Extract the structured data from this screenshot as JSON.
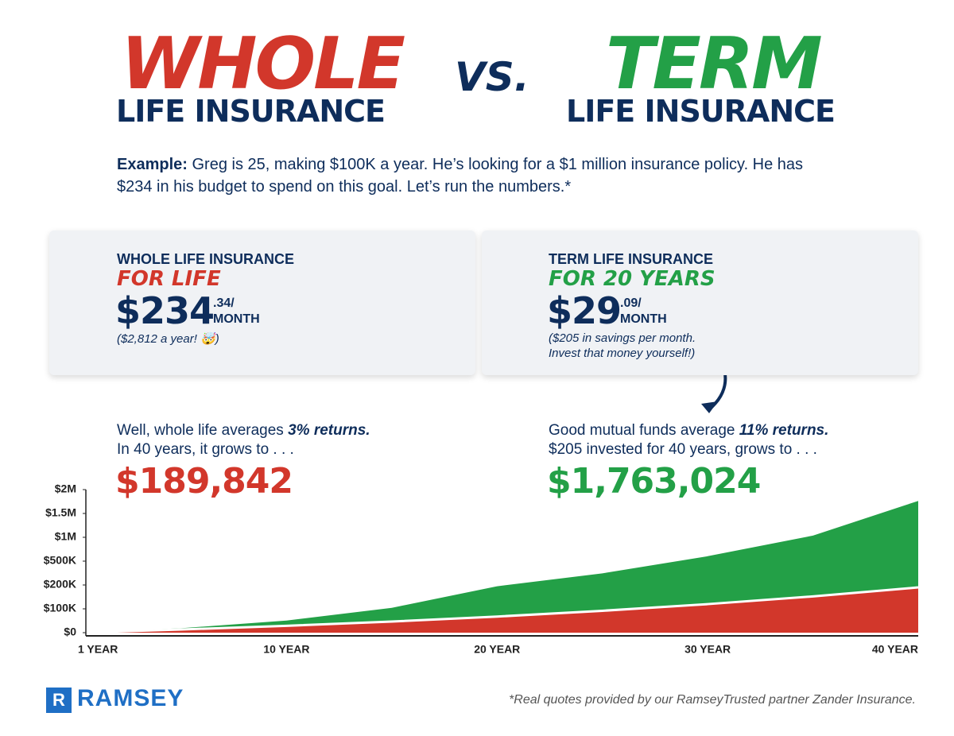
{
  "header": {
    "left_big": "WHOLE",
    "left_sub": "LIFE INSURANCE",
    "vs": "VS.",
    "right_big": "TERM",
    "right_sub": "LIFE INSURANCE"
  },
  "example": {
    "lead": "Example:",
    "line1": "Greg is 25, making $100K a year. He’s looking for a $1 million insurance policy. He has",
    "line2": "$234 in his budget to spend on this goal. Let’s run the numbers.*"
  },
  "cards": [
    {
      "title": "WHOLE LIFE INSURANCE",
      "term": "FOR LIFE",
      "price": "$234",
      "cents": ".34/",
      "per": "MONTH",
      "note": [
        "($2,812 a year! 🤯)"
      ]
    },
    {
      "title": "TERM LIFE INSURANCE",
      "term": "FOR 20 YEARS",
      "price": "$29",
      "cents": ".09/",
      "per": "MONTH",
      "note": [
        "($205 in savings per month.",
        "Invest that money yourself!)"
      ]
    }
  ],
  "results": [
    {
      "line1_a": "Well, whole life averages ",
      "line1_b": "3% returns.",
      "line2": "In 40 years, it grows to . . .",
      "amount": "$189,842"
    },
    {
      "line1_a": "Good mutual funds average ",
      "line1_b": "11% returns.",
      "line2": "$205 invested for 40 years, grows to . . .",
      "amount": "$1,763,024"
    }
  ],
  "chart_data": {
    "type": "area",
    "x": [
      1,
      5,
      10,
      15,
      20,
      25,
      30,
      35,
      40
    ],
    "series": [
      {
        "color": "#23a047",
        "values": [
          2600,
          18900,
          50700,
          104300,
          194600,
          346700,
          603200,
          1035300,
          1763024
        ]
      },
      {
        "color": "#d2372b",
        "values": [
          2520,
          13360,
          28850,
          46800,
          67600,
          91800,
          119800,
          152200,
          189842
        ]
      }
    ],
    "xlim": [
      1,
      40
    ],
    "xticks": [
      {
        "value": 1,
        "label": "1 YEAR"
      },
      {
        "value": 10,
        "label": "10 YEAR"
      },
      {
        "value": 20,
        "label": "20 YEAR"
      },
      {
        "value": 30,
        "label": "30 YEAR"
      },
      {
        "value": 40,
        "label": "40 YEAR"
      }
    ],
    "ylim": [
      0,
      2000000
    ],
    "yticks": [
      {
        "value": 0,
        "label": "$0"
      },
      {
        "value": 100000,
        "label": "$100K"
      },
      {
        "value": 200000,
        "label": "$200K"
      },
      {
        "value": 500000,
        "label": "$500K"
      },
      {
        "value": 1000000,
        "label": "$1M"
      },
      {
        "value": 1500000,
        "label": "$1.5M"
      },
      {
        "value": 2000000,
        "label": "$2M"
      }
    ]
  },
  "footer": {
    "logo": "RAMSEY",
    "logo_mark": "R",
    "footnote": "*Real quotes provided by our RamseyTrusted partner Zander Insurance."
  }
}
